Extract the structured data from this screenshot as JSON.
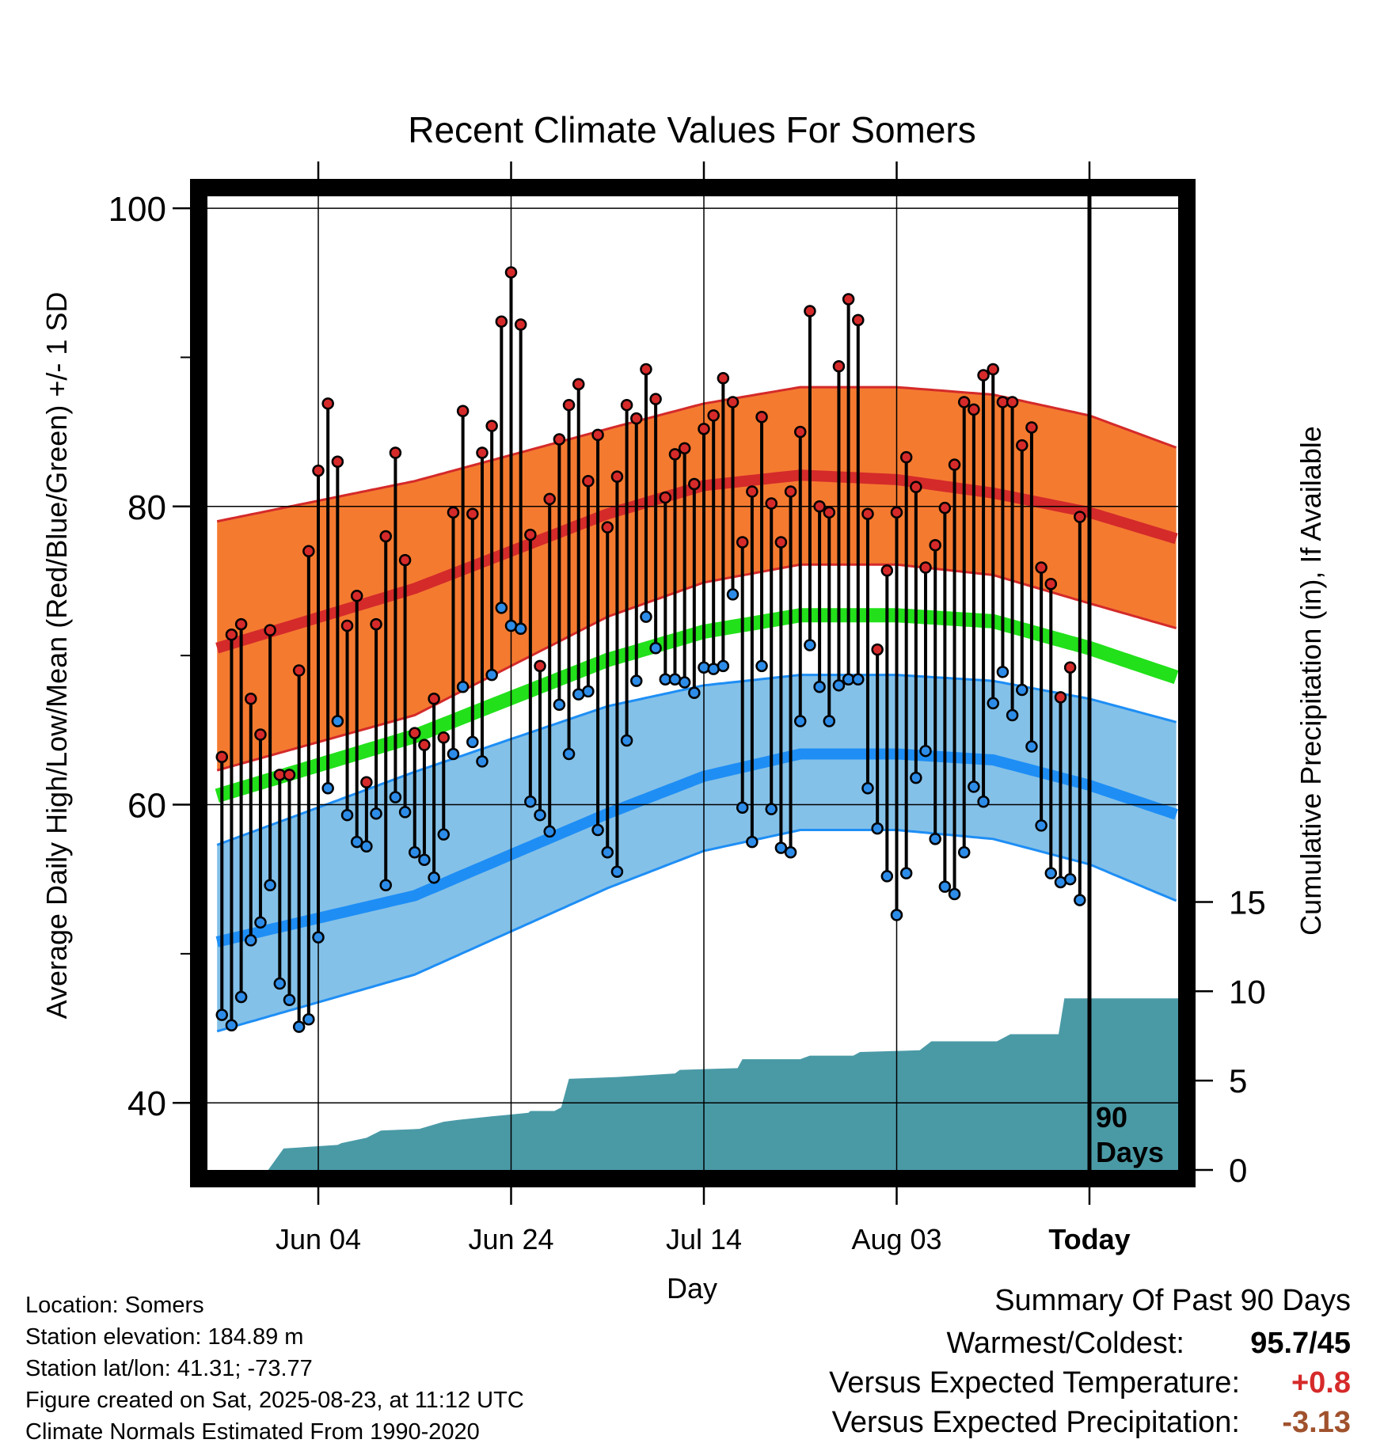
{
  "chart_data": {
    "type": "line",
    "title": "Recent Climate Values For Somers",
    "xlabel": "Day",
    "ylabel": "Average Daily High/Low/Mean (Red/Blue/Green) +/- 1 SD",
    "y2label": "Cumulative Precipitation (in), If Available",
    "x_tick_labels": [
      "Jun 04",
      "Jun 24",
      "Jul 14",
      "Aug 03",
      "Today"
    ],
    "y_ticks": [
      40,
      60,
      80,
      100
    ],
    "y2_ticks": [
      0,
      5,
      10,
      15
    ],
    "ylim": [
      35.5,
      100.8
    ],
    "y2lim": [
      0,
      54.5
    ],
    "xlim_days_before_today": [
      -91.5,
      9.2
    ],
    "today_marker_label": "90 Days",
    "colors": {
      "high_band": "#f47a30",
      "high_line": "#d42a2a",
      "low_band": "#84c1e8",
      "low_line": "#1e8ef5",
      "mean_line": "#22e01a",
      "precip": "#4a9aa6",
      "high_dot": "#d62a2a",
      "low_dot": "#2d8ce8",
      "positive": "#d62a2a",
      "negative": "#a0522d"
    },
    "normals": {
      "days": [
        -90.5,
        -70,
        -50,
        -40,
        -30,
        -20,
        -10,
        0,
        9.2
      ],
      "high_mean": [
        70.5,
        74.5,
        79.5,
        81.4,
        82.1,
        81.8,
        80.9,
        79.6,
        77.8
      ],
      "high_upper": [
        79.0,
        81.7,
        85.2,
        86.9,
        88.0,
        88.0,
        87.5,
        86.1,
        83.9
      ],
      "high_lower": [
        62.3,
        66.0,
        72.6,
        74.9,
        76.1,
        76.1,
        75.4,
        73.5,
        71.8
      ],
      "mean": [
        60.6,
        64.6,
        69.7,
        71.6,
        72.7,
        72.7,
        72.3,
        70.5,
        68.5
      ],
      "low_mean": [
        50.8,
        53.9,
        59.4,
        61.9,
        63.4,
        63.4,
        63.0,
        61.3,
        59.3
      ],
      "low_upper": [
        57.3,
        62.2,
        66.6,
        68.0,
        68.7,
        68.7,
        68.3,
        67.1,
        65.5
      ],
      "low_lower": [
        44.8,
        48.6,
        54.4,
        56.9,
        58.3,
        58.3,
        57.7,
        56.0,
        53.5
      ]
    },
    "daily": {
      "days_before_today": [
        -90,
        -89,
        -88,
        -87,
        -86,
        -85,
        -84,
        -83,
        -82,
        -81,
        -80,
        -79,
        -78,
        -77,
        -76,
        -75,
        -74,
        -73,
        -72,
        -71,
        -70,
        -69,
        -68,
        -67,
        -66,
        -65,
        -64,
        -63,
        -62,
        -61,
        -60,
        -59,
        -58,
        -57,
        -56,
        -55,
        -54,
        -53,
        -52,
        -51,
        -50,
        -49,
        -48,
        -47,
        -46,
        -45,
        -44,
        -43,
        -42,
        -41,
        -40,
        -39,
        -38,
        -37,
        -36,
        -35,
        -34,
        -33,
        -32,
        -31,
        -30,
        -29,
        -28,
        -27,
        -26,
        -25,
        -24,
        -23,
        -22,
        -21,
        -20,
        -19,
        -18,
        -17,
        -16,
        -15,
        -14,
        -13,
        -12,
        -11,
        -10,
        -9,
        -8,
        -7,
        -6,
        -5,
        -4,
        -3,
        -2,
        -1
      ],
      "high": [
        63.2,
        71.4,
        72.1,
        67.1,
        64.7,
        71.7,
        62.0,
        62.0,
        69.0,
        77.0,
        82.4,
        86.9,
        83.0,
        72.0,
        74.0,
        61.5,
        72.1,
        78.0,
        83.6,
        76.4,
        64.8,
        64.0,
        67.1,
        64.5,
        79.6,
        86.4,
        79.5,
        83.6,
        85.4,
        92.4,
        95.7,
        92.2,
        78.1,
        69.3,
        80.5,
        84.5,
        86.8,
        88.2,
        81.7,
        84.8,
        78.6,
        82.0,
        86.8,
        85.9,
        89.2,
        87.2,
        80.6,
        83.5,
        83.9,
        81.5,
        85.2,
        86.1,
        88.6,
        87.0,
        77.6,
        81.0,
        86.0,
        80.2,
        77.6,
        81.0,
        85.0,
        93.1,
        80.0,
        79.6,
        89.4,
        93.9,
        92.5,
        79.5,
        70.4,
        75.7,
        79.6,
        83.3,
        81.3,
        75.9,
        77.4,
        79.9,
        82.8,
        87.0,
        86.5,
        88.8,
        89.2,
        87.0,
        87.0,
        84.1,
        85.3,
        75.9,
        74.8,
        67.2,
        69.2,
        79.3
      ],
      "low": [
        45.9,
        45.2,
        47.1,
        50.9,
        52.1,
        54.6,
        48.0,
        46.9,
        45.1,
        45.6,
        51.1,
        61.1,
        65.6,
        59.3,
        57.5,
        57.2,
        59.4,
        54.6,
        60.5,
        59.5,
        56.8,
        56.3,
        55.1,
        58.0,
        63.4,
        67.9,
        64.2,
        62.9,
        68.7,
        73.2,
        72.0,
        71.8,
        60.2,
        59.3,
        58.2,
        66.7,
        63.4,
        67.4,
        67.6,
        58.3,
        56.8,
        55.5,
        64.3,
        68.3,
        72.6,
        70.5,
        68.4,
        68.4,
        68.2,
        67.5,
        69.2,
        69.1,
        69.3,
        74.1,
        59.8,
        57.5,
        69.3,
        59.7,
        57.1,
        56.8,
        65.6,
        70.7,
        67.9,
        65.6,
        68.0,
        68.4,
        68.4,
        61.1,
        58.4,
        55.2,
        52.6,
        55.4,
        61.8,
        63.6,
        57.7,
        54.5,
        54.0,
        56.8,
        61.2,
        60.2,
        66.8,
        68.9,
        66.0,
        67.7,
        63.9,
        58.6,
        55.4,
        54.8,
        55.0,
        53.6
      ]
    },
    "precip": {
      "days": [
        -90.5,
        -85.2,
        -83.6,
        -78,
        -77.6,
        -75,
        -73.5,
        -69.5,
        -67,
        -65.5,
        -62,
        -58.2,
        -58,
        -55.5,
        -54.8,
        -54,
        -49,
        -43,
        -42.5,
        -36.5,
        -36,
        -30,
        -29,
        -24.5,
        -23.8,
        -17.6,
        -16.4,
        -9.6,
        -8.2,
        -3.2,
        -2.6,
        9.2
      ],
      "values": [
        0,
        0,
        1.2,
        1.4,
        1.5,
        1.8,
        2.2,
        2.3,
        2.7,
        2.8,
        3.0,
        3.2,
        3.3,
        3.3,
        3.5,
        5.1,
        5.2,
        5.4,
        5.6,
        5.7,
        6.2,
        6.2,
        6.4,
        6.4,
        6.6,
        6.7,
        7.2,
        7.2,
        7.6,
        7.6,
        9.6,
        9.6
      ]
    }
  },
  "info": {
    "location": "Location: Somers",
    "elevation": "Station elevation: 184.89 m",
    "latlon": "Station lat/lon: 41.31; -73.77",
    "created": "Figure created on Sat, 2025-08-23, at 11:12 UTC",
    "normals": "Climate Normals Estimated From 1990-2020"
  },
  "summary": {
    "title": "Summary Of Past 90 Days",
    "warmest_label": "Warmest/Coldest:",
    "warmest_value": "95.7/45",
    "temp_label": "Versus Expected Temperature:",
    "temp_value": "+0.8",
    "precip_label": "Versus Expected Precipitation:",
    "precip_value": "-3.13"
  }
}
